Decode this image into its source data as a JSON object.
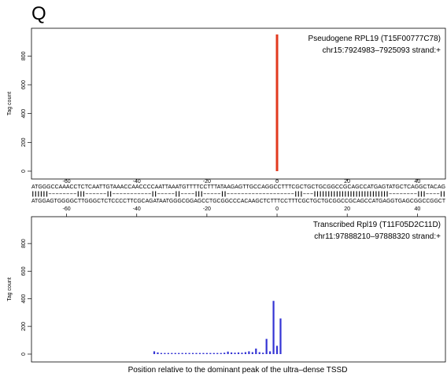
{
  "panel_letter": "Q",
  "xlabel": "Position relative to the dominant peak of the ultra–dense TSSD",
  "alignment": {
    "top_sequence": "ATGGGCCAAACCTCTCAATTGTAAACCAACCCCAATTAAATGTTTTCCTTTATAAGAGTTGCCAGGCCTTTCGCTGCTGCGGCCGCAGCCATGAGTATGCTCAGGCTACAG",
    "match_line": "||||||--------|||------||-----------||-----||----|||-----||-------------------|||---|||||||||||||||||||||||||||--------|||----||",
    "bottom_sequence": "ATGGAGTGGGGCTTGGGCTCTCCCCTTCGCAGATAATGGGCGGAGCCTGCGGCCCACAAGCTCTTTCCTTTCGCTGCTGCGGCCGCAGCCATGAGGTGAGCGGCCGGCT"
  },
  "chart_data": [
    {
      "type": "bar",
      "title": "Pseudogene RPL19 (T15F00777C78)",
      "subtitle": "chr15:7924983–7925093 strand:+",
      "ylabel": "Tag count",
      "xlim": [
        -70,
        48
      ],
      "ylim": [
        0,
        960
      ],
      "xticks": [
        -60,
        -40,
        -20,
        0,
        20,
        40
      ],
      "yticks": [
        0,
        200,
        400,
        600,
        800
      ],
      "color": "#e23a1e",
      "x": [
        0
      ],
      "values": [
        950
      ]
    },
    {
      "type": "bar",
      "title": "Transcribed Rpl19 (T11F05D2C11D)",
      "subtitle": "chr11:97888210–97888320 strand:+",
      "ylabel": "Tag count",
      "xlim": [
        -70,
        48
      ],
      "ylim": [
        0,
        960
      ],
      "xticks": [
        -60,
        -40,
        -20,
        0,
        20,
        40
      ],
      "yticks": [
        0,
        200,
        400,
        600,
        800
      ],
      "color": "#3434d4",
      "x": [
        -35,
        -34,
        -33,
        -32,
        -31,
        -30,
        -29,
        -28,
        -27,
        -26,
        -25,
        -24,
        -23,
        -22,
        -21,
        -20,
        -19,
        -18,
        -17,
        -16,
        -15,
        -14,
        -13,
        -12,
        -11,
        -10,
        -9,
        -8,
        -7,
        -6,
        -5,
        -4,
        -3,
        -2,
        -1,
        0,
        1
      ],
      "values": [
        20,
        12,
        8,
        8,
        8,
        8,
        8,
        8,
        8,
        8,
        8,
        8,
        8,
        8,
        8,
        8,
        8,
        8,
        8,
        8,
        10,
        18,
        12,
        10,
        12,
        10,
        14,
        20,
        14,
        40,
        14,
        10,
        110,
        20,
        385,
        60,
        258
      ]
    }
  ]
}
